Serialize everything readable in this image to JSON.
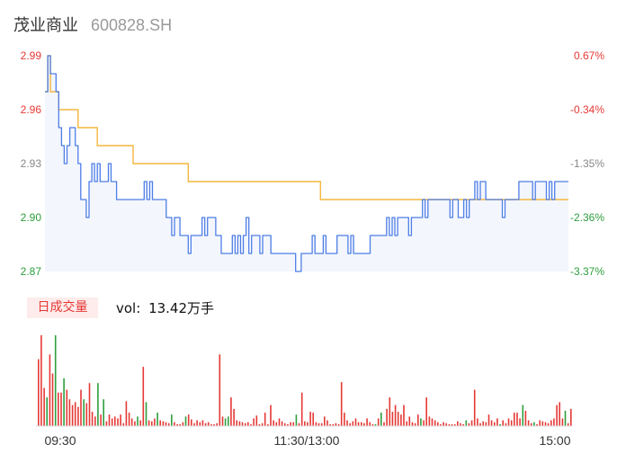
{
  "header": {
    "stock_name": "茂业商业",
    "stock_code": "600828.SH"
  },
  "price_axis": {
    "labels": [
      "2.99",
      "2.96",
      "2.93",
      "2.90",
      "2.87"
    ],
    "colors": [
      "#e53935",
      "#e53935",
      "#888888",
      "#2e9e3e",
      "#2e9e3e"
    ]
  },
  "pct_axis": {
    "labels": [
      "0.67%",
      "-0.34%",
      "-1.35%",
      "-2.36%",
      "-3.37%"
    ],
    "colors": [
      "#e53935",
      "#e53935",
      "#888888",
      "#2e9e3e",
      "#2e9e3e"
    ]
  },
  "time_axis": {
    "labels": [
      "09:30",
      "11:30/13:00",
      "15:00"
    ]
  },
  "volume": {
    "tab_label": "日成交量",
    "vol_label": "vol:",
    "vol_value": "13.42万手"
  },
  "colors": {
    "price_line": "#4e7ee6",
    "avg_line": "#f4b73e",
    "up": "#e53935",
    "down": "#2e9e3e",
    "fill": "#f3f6fd"
  },
  "chart_data": {
    "type": "line",
    "title": "",
    "xlabel": "",
    "ylabel": "",
    "ylim": [
      2.87,
      2.99
    ],
    "series": [
      {
        "name": "price",
        "values": [
          2.97,
          2.99,
          2.98,
          2.98,
          2.97,
          2.95,
          2.94,
          2.93,
          2.94,
          2.95,
          2.95,
          2.94,
          2.93,
          2.91,
          2.91,
          2.9,
          2.92,
          2.93,
          2.92,
          2.93,
          2.92,
          2.92,
          2.92,
          2.93,
          2.92,
          2.92,
          2.91,
          2.91,
          2.91,
          2.91,
          2.91,
          2.91,
          2.91,
          2.91,
          2.91,
          2.91,
          2.92,
          2.91,
          2.92,
          2.91,
          2.91,
          2.91,
          2.91,
          2.91,
          2.9,
          2.9,
          2.89,
          2.9,
          2.9,
          2.89,
          2.89,
          2.89,
          2.88,
          2.89,
          2.89,
          2.89,
          2.89,
          2.9,
          2.89,
          2.9,
          2.9,
          2.9,
          2.89,
          2.89,
          2.88,
          2.88,
          2.88,
          2.88,
          2.89,
          2.88,
          2.89,
          2.88,
          2.89,
          2.9,
          2.88,
          2.89,
          2.89,
          2.89,
          2.88,
          2.89,
          2.89,
          2.89,
          2.88,
          2.88,
          2.88,
          2.88,
          2.88,
          2.88,
          2.88,
          2.88,
          2.88,
          2.87,
          2.87,
          2.88,
          2.88,
          2.88,
          2.88,
          2.89,
          2.88,
          2.88,
          2.88,
          2.89,
          2.88,
          2.88,
          2.88,
          2.88,
          2.89,
          2.89,
          2.89,
          2.89,
          2.88,
          2.89,
          2.88,
          2.88,
          2.88,
          2.88,
          2.88,
          2.88,
          2.89,
          2.89,
          2.89,
          2.89,
          2.89,
          2.89,
          2.9,
          2.89,
          2.9,
          2.89,
          2.9,
          2.9,
          2.9,
          2.9,
          2.89,
          2.9,
          2.9,
          2.9,
          2.9,
          2.91,
          2.9,
          2.91,
          2.91,
          2.91,
          2.91,
          2.91,
          2.91,
          2.91,
          2.91,
          2.9,
          2.91,
          2.91,
          2.9,
          2.9,
          2.91,
          2.9,
          2.91,
          2.91,
          2.92,
          2.91,
          2.92,
          2.92,
          2.91,
          2.91,
          2.91,
          2.91,
          2.91,
          2.91,
          2.9,
          2.91,
          2.91,
          2.91,
          2.91,
          2.91,
          2.92,
          2.92,
          2.92,
          2.92,
          2.92,
          2.91,
          2.92,
          2.92,
          2.92,
          2.92,
          2.91,
          2.92,
          2.91,
          2.92,
          2.92,
          2.92,
          2.92,
          2.92,
          2.92
        ]
      },
      {
        "name": "avg",
        "values": [
          2.97,
          2.99,
          2.97,
          2.97,
          2.97,
          2.96,
          2.96,
          2.96,
          2.96,
          2.96,
          2.96,
          2.96,
          2.95,
          2.95,
          2.95,
          2.95,
          2.95,
          2.95,
          2.95,
          2.94,
          2.94,
          2.94,
          2.94,
          2.94,
          2.94,
          2.94,
          2.94,
          2.94,
          2.94,
          2.94,
          2.94,
          2.94,
          2.93,
          2.93,
          2.93,
          2.93,
          2.93,
          2.93,
          2.93,
          2.93,
          2.93,
          2.93,
          2.93,
          2.93,
          2.93,
          2.93,
          2.93,
          2.93,
          2.93,
          2.93,
          2.93,
          2.93,
          2.92,
          2.92,
          2.92,
          2.92,
          2.92,
          2.92,
          2.92,
          2.92,
          2.92,
          2.92,
          2.92,
          2.92,
          2.92,
          2.92,
          2.92,
          2.92,
          2.92,
          2.92,
          2.92,
          2.92,
          2.92,
          2.92,
          2.92,
          2.92,
          2.92,
          2.92,
          2.92,
          2.92,
          2.92,
          2.92,
          2.92,
          2.92,
          2.92,
          2.92,
          2.92,
          2.92,
          2.92,
          2.92,
          2.92,
          2.92,
          2.92,
          2.92,
          2.92,
          2.92,
          2.92,
          2.92,
          2.92,
          2.92,
          2.91,
          2.91,
          2.91,
          2.91,
          2.91,
          2.91,
          2.91,
          2.91,
          2.91,
          2.91,
          2.91,
          2.91,
          2.91,
          2.91,
          2.91,
          2.91,
          2.91,
          2.91,
          2.91,
          2.91,
          2.91,
          2.91,
          2.91,
          2.91,
          2.91,
          2.91,
          2.91,
          2.91,
          2.91,
          2.91,
          2.91,
          2.91,
          2.91,
          2.91,
          2.91,
          2.91,
          2.91,
          2.91,
          2.91,
          2.91,
          2.91,
          2.91,
          2.91,
          2.91,
          2.91,
          2.91,
          2.91,
          2.91,
          2.91,
          2.91,
          2.91,
          2.91,
          2.91,
          2.91,
          2.91,
          2.91,
          2.91,
          2.91,
          2.91,
          2.91,
          2.91,
          2.91,
          2.91,
          2.91,
          2.91,
          2.91,
          2.91,
          2.91,
          2.91,
          2.91,
          2.91,
          2.91,
          2.91,
          2.91,
          2.91,
          2.91,
          2.91,
          2.91,
          2.91,
          2.91,
          2.91,
          2.91,
          2.91,
          2.91,
          2.91,
          2.91,
          2.91,
          2.91,
          2.91,
          2.91,
          2.91
        ]
      }
    ],
    "volume": [
      70,
      95,
      40,
      30,
      75,
      55,
      95,
      35,
      35,
      50,
      38,
      28,
      22,
      25,
      20,
      38,
      28,
      24,
      45,
      15,
      10,
      45,
      12,
      28,
      5,
      12,
      8,
      10,
      8,
      12,
      3,
      26,
      14,
      8,
      5,
      10,
      6,
      62,
      25,
      6,
      5,
      8,
      14,
      6,
      5,
      4,
      3,
      12,
      4,
      2,
      2,
      4,
      10,
      12,
      7,
      3,
      6,
      4,
      6,
      3,
      4,
      2,
      2,
      3,
      75,
      10,
      8,
      10,
      30,
      18,
      6,
      5,
      4,
      3,
      4,
      2,
      8,
      11,
      2,
      3,
      14,
      2,
      22,
      6,
      4,
      8,
      5,
      3,
      2,
      4,
      4,
      12,
      3,
      35,
      5,
      4,
      15,
      14,
      4,
      3,
      3,
      10,
      6,
      2,
      2,
      3,
      2,
      46,
      14,
      6,
      3,
      5,
      8,
      4,
      4,
      3,
      8,
      4,
      2,
      2,
      8,
      14,
      4,
      18,
      30,
      15,
      22,
      15,
      12,
      22,
      5,
      10,
      4,
      3,
      12,
      8,
      6,
      30,
      10,
      8,
      6,
      4,
      2,
      4,
      3,
      2,
      2,
      2,
      5,
      3,
      2,
      6,
      3,
      6,
      38,
      8,
      3,
      5,
      4,
      12,
      6,
      4,
      8,
      2,
      6,
      3,
      8,
      6,
      14,
      14,
      8,
      22,
      16,
      6,
      3,
      4,
      2,
      6,
      5,
      4,
      3,
      6,
      8,
      22,
      25,
      8,
      16,
      3,
      18
    ],
    "volume_colors": [
      "u",
      "u",
      "u",
      "d",
      "u",
      "u",
      "d",
      "u",
      "u",
      "d",
      "u",
      "u",
      "u",
      "u",
      "u",
      "u",
      "d",
      "u",
      "u",
      "u",
      "u",
      "d",
      "u",
      "d",
      "u",
      "u",
      "u",
      "u",
      "u",
      "u",
      "u",
      "u",
      "u",
      "u",
      "u",
      "d",
      "u",
      "u",
      "d",
      "u",
      "u",
      "u",
      "d",
      "u",
      "u",
      "u",
      "u",
      "d",
      "u",
      "u",
      "u",
      "u",
      "d",
      "u",
      "u",
      "u",
      "u",
      "u",
      "u",
      "u",
      "u",
      "u",
      "u",
      "u",
      "u",
      "u",
      "d",
      "d",
      "u",
      "u",
      "u",
      "u",
      "u",
      "u",
      "u",
      "u",
      "u",
      "u",
      "u",
      "u",
      "u",
      "u",
      "u",
      "u",
      "u",
      "u",
      "u",
      "u",
      "u",
      "u",
      "u",
      "d",
      "u",
      "u",
      "u",
      "u",
      "u",
      "u",
      "u",
      "u",
      "u",
      "u",
      "u",
      "u",
      "u",
      "u",
      "u",
      "u",
      "u",
      "u",
      "u",
      "u",
      "u",
      "u",
      "u",
      "u",
      "u",
      "u",
      "u",
      "d",
      "u",
      "d",
      "u",
      "u",
      "u",
      "u",
      "u",
      "u",
      "u",
      "u",
      "u",
      "u",
      "u",
      "u",
      "u",
      "d",
      "u",
      "u",
      "u",
      "u",
      "u",
      "u",
      "u",
      "u",
      "u",
      "u",
      "u",
      "u",
      "u",
      "u",
      "u",
      "d",
      "u",
      "u",
      "u",
      "u",
      "u",
      "u",
      "u",
      "u",
      "u",
      "u",
      "u",
      "d",
      "u",
      "u",
      "u",
      "u",
      "u",
      "u",
      "u",
      "d",
      "u",
      "u",
      "u",
      "d",
      "u",
      "u",
      "u",
      "u",
      "u",
      "u",
      "u",
      "u",
      "u",
      "u",
      "d",
      "u",
      "u",
      "u",
      "d"
    ]
  }
}
